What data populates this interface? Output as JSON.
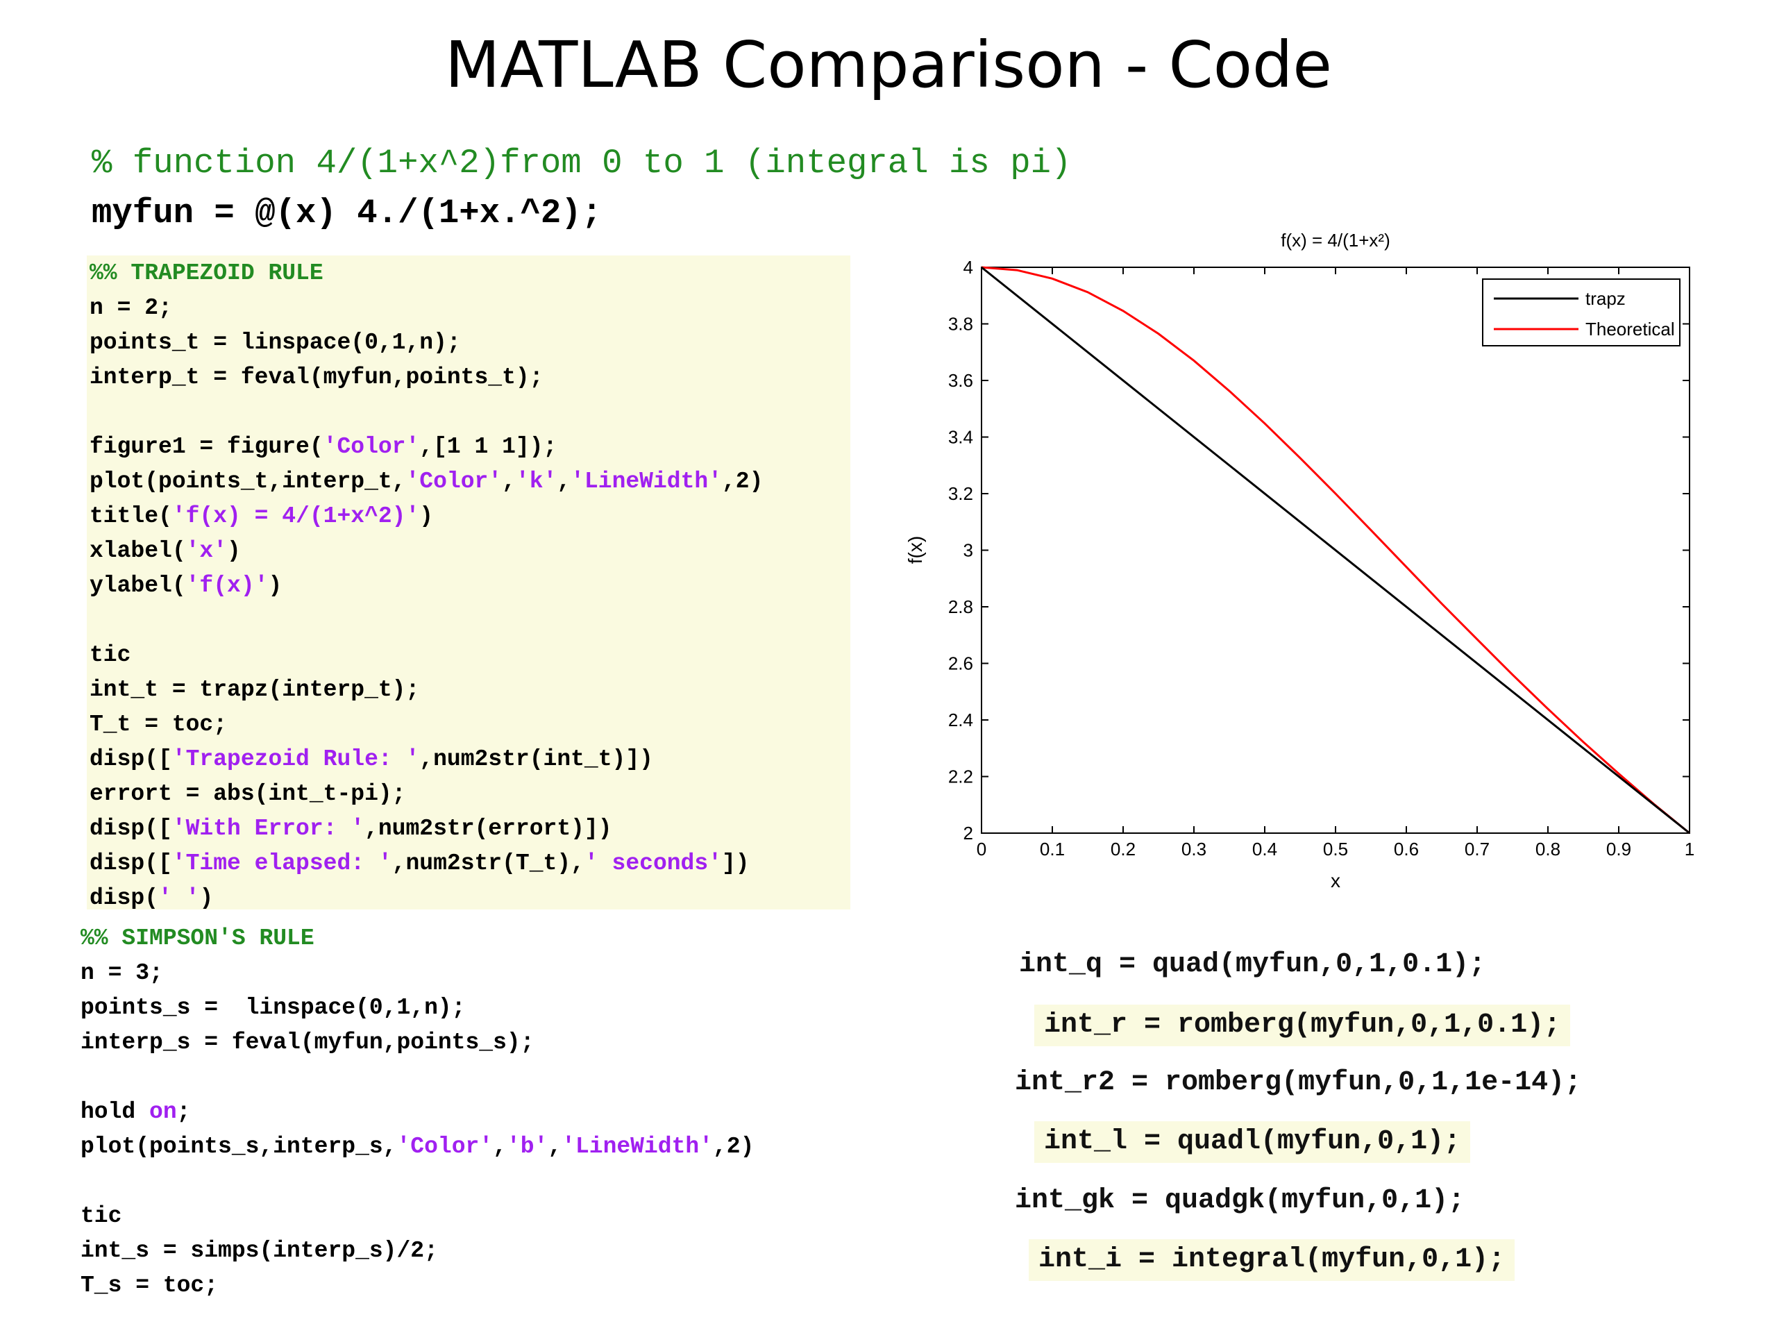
{
  "slide": {
    "title": "MATLAB Comparison - Code"
  },
  "header_code": {
    "comment": "% function 4/(1+x^2)from 0 to 1 (integral is pi)",
    "definition": "myfun = @(x) 4./(1+x.^2);"
  },
  "trapezoid_block": {
    "lines": [
      [
        {
          "t": "%% TRAPEZOID RULE",
          "c": "cm"
        }
      ],
      [
        {
          "t": "n = 2;"
        }
      ],
      [
        {
          "t": "points_t = linspace(0,1,n);"
        }
      ],
      [
        {
          "t": "interp_t = feval(myfun,points_t);"
        }
      ],
      [],
      [
        {
          "t": "figure1 = figure("
        },
        {
          "t": "'Color'",
          "c": "str"
        },
        {
          "t": ",[1 1 1]);"
        }
      ],
      [
        {
          "t": "plot(points_t,interp_t,"
        },
        {
          "t": "'Color'",
          "c": "str"
        },
        {
          "t": ","
        },
        {
          "t": "'k'",
          "c": "str"
        },
        {
          "t": ","
        },
        {
          "t": "'LineWidth'",
          "c": "str"
        },
        {
          "t": ",2)"
        }
      ],
      [
        {
          "t": "title("
        },
        {
          "t": "'f(x) = 4/(1+x^2)'",
          "c": "str"
        },
        {
          "t": ")"
        }
      ],
      [
        {
          "t": "xlabel("
        },
        {
          "t": "'x'",
          "c": "str"
        },
        {
          "t": ")"
        }
      ],
      [
        {
          "t": "ylabel("
        },
        {
          "t": "'f(x)'",
          "c": "str"
        },
        {
          "t": ")"
        }
      ],
      [],
      [
        {
          "t": "tic"
        }
      ],
      [
        {
          "t": "int_t = trapz(interp_t);"
        }
      ],
      [
        {
          "t": "T_t = toc;"
        }
      ],
      [
        {
          "t": "disp(["
        },
        {
          "t": "'Trapezoid Rule: '",
          "c": "str"
        },
        {
          "t": ",num2str(int_t)])"
        }
      ],
      [
        {
          "t": "errort = abs(int_t-pi);"
        }
      ],
      [
        {
          "t": "disp(["
        },
        {
          "t": "'With Error: '",
          "c": "str"
        },
        {
          "t": ",num2str(errort)])"
        }
      ],
      [
        {
          "t": "disp(["
        },
        {
          "t": "'Time elapsed: '",
          "c": "str"
        },
        {
          "t": ",num2str(T_t),"
        },
        {
          "t": "' seconds'",
          "c": "str"
        },
        {
          "t": "])"
        }
      ],
      [
        {
          "t": "disp("
        },
        {
          "t": "' '",
          "c": "str"
        },
        {
          "t": ")"
        }
      ]
    ]
  },
  "simpson_block": {
    "lines": [
      [
        {
          "t": "%% SIMPSON'S RULE",
          "c": "cm"
        }
      ],
      [
        {
          "t": "n = 3;"
        }
      ],
      [
        {
          "t": "points_s =  linspace(0,1,n);"
        }
      ],
      [
        {
          "t": "interp_s = feval(myfun,points_s);"
        }
      ],
      [],
      [
        {
          "t": "hold "
        },
        {
          "t": "on",
          "c": "str"
        },
        {
          "t": ";"
        }
      ],
      [
        {
          "t": "plot(points_s,interp_s,"
        },
        {
          "t": "'Color'",
          "c": "str"
        },
        {
          "t": ","
        },
        {
          "t": "'b'",
          "c": "str"
        },
        {
          "t": ","
        },
        {
          "t": "'LineWidth'",
          "c": "str"
        },
        {
          "t": ",2)"
        }
      ],
      [],
      [
        {
          "t": "tic"
        }
      ],
      [
        {
          "t": "int_s = simps(interp_s)/2;"
        }
      ],
      [
        {
          "t": "T_s = toc;"
        }
      ]
    ]
  },
  "function_calls": [
    {
      "text": "int_q = quad(myfun,0,1,0.1);",
      "highlight": false
    },
    {
      "text": "int_r = romberg(myfun,0,1,0.1);",
      "highlight": true
    },
    {
      "text": "int_r2 = romberg(myfun,0,1,1e-14);",
      "highlight": false
    },
    {
      "text": "int_l = quadl(myfun,0,1);",
      "highlight": true
    },
    {
      "text": "int_gk = quadgk(myfun,0,1);",
      "highlight": false
    },
    {
      "text": "int_i = integral(myfun,0,1);",
      "highlight": true
    }
  ],
  "colors": {
    "comment": "#228B22",
    "string": "#A020F0",
    "code_highlight_bg": "#fafae0",
    "trapz_line": "#000000",
    "theoretical_line": "#ff0000"
  },
  "chart_data": {
    "type": "line",
    "title": "f(x) = 4/(1+x²)",
    "xlabel": "x",
    "ylabel": "f(x)",
    "xlim": [
      0,
      1
    ],
    "ylim": [
      2,
      4
    ],
    "xticks": [
      0,
      0.1,
      0.2,
      0.3,
      0.4,
      0.5,
      0.6,
      0.7,
      0.8,
      0.9,
      1
    ],
    "yticks": [
      2,
      2.2,
      2.4,
      2.6,
      2.8,
      3,
      3.2,
      3.4,
      3.6,
      3.8,
      4
    ],
    "legend_position": "top-right",
    "grid": false,
    "series": [
      {
        "name": "trapz",
        "color": "#000000",
        "x": [
          0,
          1
        ],
        "y": [
          4,
          2
        ]
      },
      {
        "name": "Theoretical",
        "color": "#ff0000",
        "x": [
          0,
          0.05,
          0.1,
          0.15,
          0.2,
          0.25,
          0.3,
          0.35,
          0.4,
          0.45,
          0.5,
          0.55,
          0.6,
          0.65,
          0.7,
          0.75,
          0.8,
          0.85,
          0.9,
          0.95,
          1
        ],
        "y": [
          4,
          3.99,
          3.96,
          3.912,
          3.846,
          3.765,
          3.67,
          3.563,
          3.448,
          3.326,
          3.2,
          3.071,
          2.941,
          2.811,
          2.685,
          2.56,
          2.439,
          2.322,
          2.21,
          2.102,
          2
        ]
      }
    ]
  }
}
